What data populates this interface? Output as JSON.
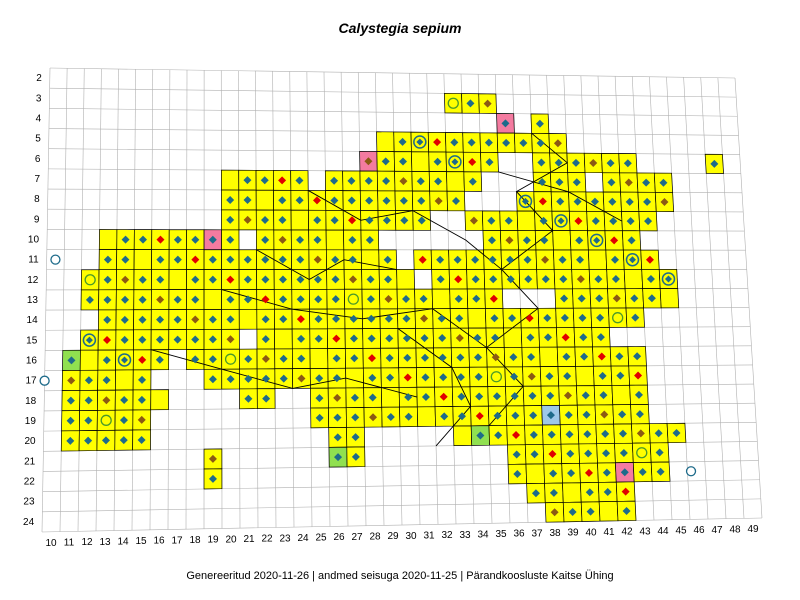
{
  "map": {
    "title": "Calystegia sepium",
    "footer": "Genereeritud 2020-11-26  |  andmed seisuga 2020-11-25  |  Pärandkoosluste Kaitse Ühing",
    "row_labels": [
      "2",
      "3",
      "4",
      "5",
      "6",
      "7",
      "8",
      "9",
      "10",
      "11",
      "12",
      "13",
      "14",
      "15",
      "16",
      "17",
      "18",
      "19",
      "20",
      "21",
      "22",
      "23",
      "24"
    ],
    "col_labels": [
      "10",
      "11",
      "12",
      "13",
      "14",
      "15",
      "16",
      "17",
      "18",
      "19",
      "20",
      "21",
      "22",
      "23",
      "24",
      "25",
      "26",
      "27",
      "28",
      "29",
      "30",
      "31",
      "32",
      "33",
      "34",
      "35",
      "36",
      "37",
      "38",
      "39",
      "40",
      "41",
      "42",
      "43",
      "44",
      "45",
      "46",
      "47",
      "48",
      "49"
    ],
    "colors": {
      "occupied_fill": "#ffff00",
      "cell_border": "#000000",
      "grid_line": "#b0b0b0",
      "diamond_teal": "#1e6b8a",
      "diamond_brown": "#8b5a14",
      "diamond_red": "#e00000",
      "circle_ring": "#1e6b8a",
      "circle_green": "#4a9a2a",
      "pink_fill": "#f47ba0",
      "green_fill": "#90e050",
      "blue_fill": "#9ec8e8"
    },
    "symbol_types": [
      "diamond-teal",
      "diamond-brown",
      "diamond-red",
      "ring-diamond",
      "open-circle",
      "cross-circle",
      "plus"
    ]
  }
}
